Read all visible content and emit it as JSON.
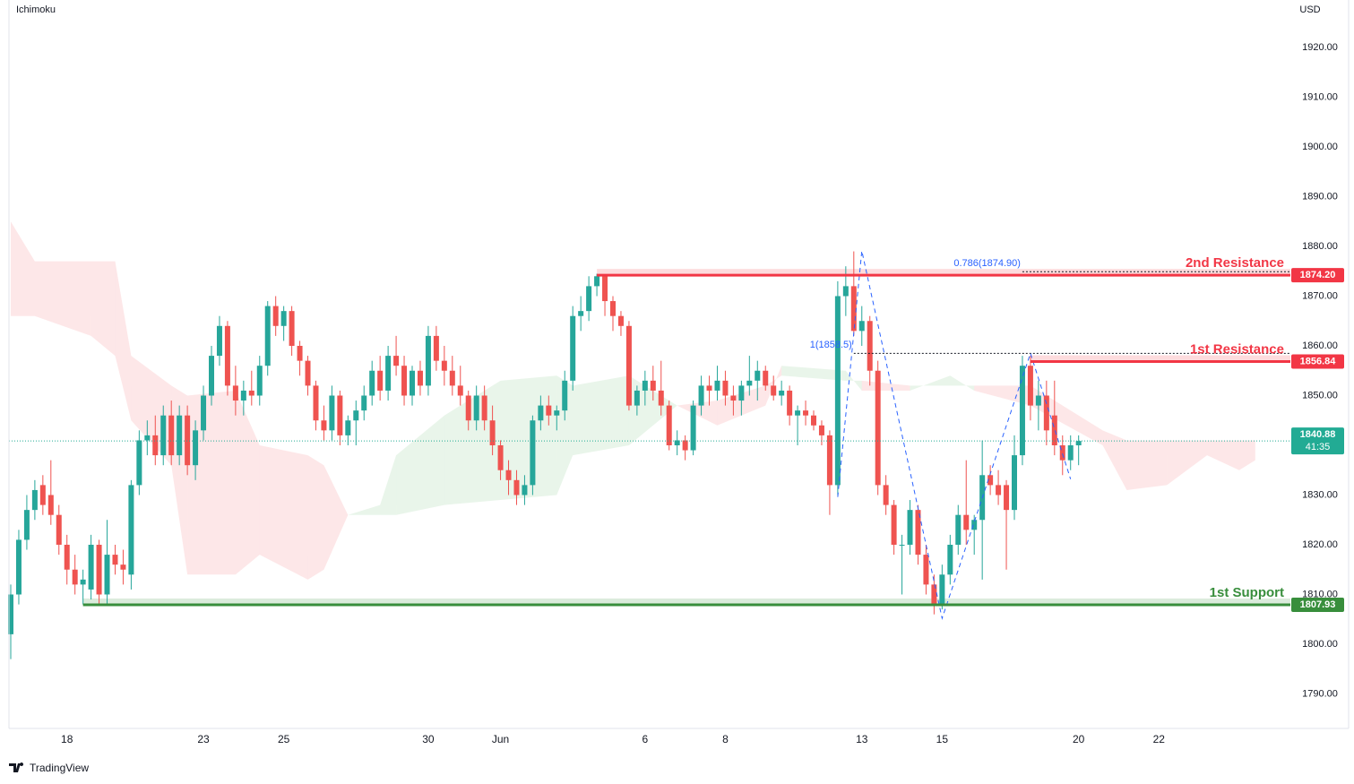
{
  "chart_data": {
    "type": "candlestick",
    "indicator": "Ichimoku",
    "currency": "USD",
    "brand": "TradingView",
    "up_color": "#26a69a",
    "down_color": "#ef5350",
    "ylim": [
      1783.24,
      1929.55
    ],
    "yticks": [
      {
        "value": 1790,
        "label": "1790.00"
      },
      {
        "value": 1800,
        "label": "1800.00"
      },
      {
        "value": 1810,
        "label": "1810.00"
      },
      {
        "value": 1820,
        "label": "1820.00"
      },
      {
        "value": 1830,
        "label": "1830.00"
      },
      {
        "value": 1840,
        "label": "1840.00"
      },
      {
        "value": 1850,
        "label": "1850.00"
      },
      {
        "value": 1860,
        "label": "1860.00"
      },
      {
        "value": 1870,
        "label": "1870.00"
      },
      {
        "value": 1880,
        "label": "1880.00"
      },
      {
        "value": 1890,
        "label": "1890.00"
      },
      {
        "value": 1900,
        "label": "1900.00"
      },
      {
        "value": 1910,
        "label": "1910.00"
      },
      {
        "value": 1920,
        "label": "1920.00"
      }
    ],
    "categories": [
      null,
      null,
      null,
      null,
      null,
      null,
      null,
      "18",
      null,
      null,
      null,
      null,
      null,
      null,
      null,
      null,
      null,
      null,
      null,
      null,
      null,
      null,
      null,
      null,
      "23",
      null,
      null,
      null,
      null,
      null,
      null,
      null,
      null,
      null,
      "25",
      null,
      null,
      null,
      null,
      null,
      null,
      null,
      null,
      null,
      null,
      null,
      null,
      null,
      null,
      null,
      null,
      null,
      "30",
      null,
      null,
      null,
      null,
      null,
      null,
      null,
      null,
      "Jun",
      null,
      null,
      null,
      null,
      null,
      null,
      null,
      null,
      null,
      null,
      null,
      null,
      null,
      null,
      null,
      null,
      null,
      "6",
      null,
      null,
      null,
      null,
      null,
      null,
      null,
      null,
      null,
      "8",
      null,
      null,
      null,
      null,
      null,
      null,
      null,
      null,
      null,
      null,
      null,
      null,
      null,
      null,
      null,
      null,
      "13",
      null,
      null,
      null,
      null,
      null,
      null,
      null,
      null,
      null,
      "15",
      null,
      null,
      null,
      null,
      null,
      null,
      null,
      null,
      null,
      null,
      null,
      null,
      null,
      null,
      null,
      null,
      "20",
      null,
      null,
      null,
      null,
      null,
      null,
      null,
      null,
      null,
      "22",
      null,
      null,
      null,
      null,
      null,
      null,
      null,
      null,
      null,
      null,
      null,
      null
    ],
    "candles": [
      [
        1802,
        1812,
        1797,
        1810
      ],
      [
        1810,
        1823,
        1808,
        1821
      ],
      [
        1821,
        1830,
        1819,
        1827
      ],
      [
        1827,
        1833,
        1825,
        1831
      ],
      [
        1832,
        1834,
        1826,
        1828
      ],
      [
        1830,
        1837,
        1824,
        1826
      ],
      [
        1826,
        1828,
        1818,
        1820
      ],
      [
        1820,
        1822,
        1812,
        1815
      ],
      [
        1815,
        1818,
        1810,
        1812
      ],
      [
        1812,
        1815,
        1808,
        1813
      ],
      [
        1811,
        1822,
        1809,
        1820
      ],
      [
        1820,
        1821,
        1808,
        1810
      ],
      [
        1810,
        1825,
        1808,
        1818
      ],
      [
        1818,
        1820,
        1814,
        1816
      ],
      [
        1816,
        1819,
        1812,
        1815
      ],
      [
        1814,
        1833,
        1811,
        1832
      ],
      [
        1832,
        1843,
        1830,
        1841
      ],
      [
        1841,
        1845,
        1838,
        1842
      ],
      [
        1842,
        1846,
        1836,
        1838
      ],
      [
        1838,
        1848,
        1836,
        1846
      ],
      [
        1846,
        1849,
        1836,
        1838
      ],
      [
        1838,
        1848,
        1836,
        1846
      ],
      [
        1846,
        1848,
        1834,
        1836
      ],
      [
        1836,
        1845,
        1833,
        1843
      ],
      [
        1843,
        1852,
        1841,
        1850
      ],
      [
        1850,
        1860,
        1848,
        1858
      ],
      [
        1858,
        1866,
        1856,
        1864
      ],
      [
        1864,
        1865,
        1850,
        1852
      ],
      [
        1852,
        1856,
        1846,
        1849
      ],
      [
        1849,
        1853,
        1846,
        1851
      ],
      [
        1851,
        1855,
        1848,
        1850
      ],
      [
        1850,
        1858,
        1848,
        1856
      ],
      [
        1856,
        1869,
        1854,
        1868
      ],
      [
        1868,
        1870,
        1862,
        1864
      ],
      [
        1864,
        1868,
        1861,
        1867
      ],
      [
        1867,
        1868,
        1858,
        1860
      ],
      [
        1860,
        1861,
        1854,
        1857
      ],
      [
        1857,
        1858,
        1850,
        1852
      ],
      [
        1852,
        1853,
        1843,
        1845
      ],
      [
        1845,
        1848,
        1841,
        1843
      ],
      [
        1843,
        1852,
        1841,
        1850
      ],
      [
        1850,
        1851,
        1840,
        1842
      ],
      [
        1842,
        1846,
        1840,
        1845
      ],
      [
        1845,
        1849,
        1840,
        1847
      ],
      [
        1847,
        1852,
        1845,
        1850
      ],
      [
        1850,
        1857,
        1848,
        1855
      ],
      [
        1855,
        1858,
        1849,
        1851
      ],
      [
        1851,
        1860,
        1849,
        1858
      ],
      [
        1858,
        1862,
        1854,
        1856
      ],
      [
        1856,
        1858,
        1848,
        1850
      ],
      [
        1850,
        1856,
        1848,
        1855
      ],
      [
        1855,
        1857,
        1850,
        1852
      ],
      [
        1852,
        1864,
        1850,
        1862
      ],
      [
        1862,
        1864,
        1855,
        1857
      ],
      [
        1857,
        1860,
        1852,
        1855
      ],
      [
        1855,
        1858,
        1850,
        1852
      ],
      [
        1852,
        1856,
        1848,
        1850
      ],
      [
        1850,
        1851,
        1843,
        1845
      ],
      [
        1845,
        1852,
        1843,
        1850
      ],
      [
        1850,
        1852,
        1843,
        1845
      ],
      [
        1845,
        1848,
        1838,
        1840
      ],
      [
        1840,
        1841,
        1833,
        1835
      ],
      [
        1835,
        1837,
        1830,
        1833
      ],
      [
        1833,
        1835,
        1828,
        1830
      ],
      [
        1830,
        1834,
        1828,
        1832
      ],
      [
        1832,
        1846,
        1830,
        1845
      ],
      [
        1845,
        1850,
        1843,
        1848
      ],
      [
        1848,
        1850,
        1844,
        1846
      ],
      [
        1846,
        1848,
        1843,
        1847
      ],
      [
        1847,
        1855,
        1845,
        1853
      ],
      [
        1853,
        1868,
        1851,
        1866
      ],
      [
        1866,
        1870,
        1863,
        1867
      ],
      [
        1867,
        1874,
        1865,
        1872
      ],
      [
        1872,
        1874.5,
        1870,
        1874
      ],
      [
        1874,
        1874,
        1866,
        1869
      ],
      [
        1869,
        1870,
        1863,
        1866
      ],
      [
        1866,
        1867,
        1862,
        1864
      ],
      [
        1864,
        1865,
        1847,
        1848
      ],
      [
        1848,
        1852,
        1846,
        1851
      ],
      [
        1851,
        1855,
        1848,
        1853
      ],
      [
        1853,
        1856,
        1849,
        1851
      ],
      [
        1851,
        1857,
        1846,
        1848
      ],
      [
        1848,
        1849,
        1839,
        1840
      ],
      [
        1840,
        1843,
        1838,
        1841
      ],
      [
        1841,
        1842,
        1837,
        1839
      ],
      [
        1839,
        1849,
        1838,
        1848
      ],
      [
        1848,
        1854,
        1846,
        1852
      ],
      [
        1852,
        1854,
        1848,
        1851
      ],
      [
        1851,
        1856,
        1849,
        1853
      ],
      [
        1853,
        1855,
        1848,
        1850
      ],
      [
        1850,
        1852,
        1846,
        1849
      ],
      [
        1849,
        1853,
        1846,
        1852
      ],
      [
        1852,
        1858,
        1850,
        1853
      ],
      [
        1853,
        1857,
        1849,
        1855
      ],
      [
        1855,
        1856,
        1851,
        1852
      ],
      [
        1852,
        1854,
        1849,
        1850
      ],
      [
        1850,
        1853,
        1848,
        1851
      ],
      [
        1851,
        1852,
        1844,
        1846
      ],
      [
        1846,
        1848,
        1840,
        1847
      ],
      [
        1847,
        1849,
        1844,
        1846
      ],
      [
        1846,
        1847,
        1843,
        1844
      ],
      [
        1844,
        1845,
        1840,
        1842
      ],
      [
        1842,
        1843,
        1826,
        1832
      ],
      [
        1832,
        1873,
        1830,
        1870
      ],
      [
        1870,
        1876,
        1866,
        1872
      ],
      [
        1872,
        1879,
        1862,
        1863
      ],
      [
        1863,
        1868,
        1860,
        1865
      ],
      [
        1865,
        1866,
        1852,
        1855
      ],
      [
        1855,
        1857,
        1830,
        1832
      ],
      [
        1832,
        1834,
        1826,
        1828
      ],
      [
        1828,
        1829,
        1818,
        1820
      ],
      [
        1820,
        1822,
        1810,
        1820
      ],
      [
        1820,
        1829,
        1818,
        1827
      ],
      [
        1827,
        1828,
        1816,
        1818
      ],
      [
        1818,
        1820,
        1810,
        1812
      ],
      [
        1812,
        1814,
        1806,
        1808
      ],
      [
        1808,
        1816,
        1807,
        1814
      ],
      [
        1814,
        1822,
        1812,
        1820
      ],
      [
        1820,
        1828,
        1818,
        1826
      ],
      [
        1826,
        1837,
        1820,
        1823
      ],
      [
        1823,
        1826,
        1818,
        1825
      ],
      [
        1825,
        1841,
        1813,
        1834
      ],
      [
        1834,
        1836,
        1830,
        1832
      ],
      [
        1832,
        1835,
        1828,
        1830
      ],
      [
        1832,
        1833,
        1815,
        1827
      ],
      [
        1827,
        1842,
        1825,
        1838
      ],
      [
        1838,
        1858,
        1836,
        1856
      ],
      [
        1856,
        1858,
        1845,
        1848
      ],
      [
        1848,
        1853,
        1843,
        1850
      ],
      [
        1850,
        1853,
        1840,
        1843
      ],
      [
        1846,
        1853,
        1838,
        1840
      ],
      [
        1840,
        1842,
        1834,
        1837
      ],
      [
        1837,
        1842,
        1835,
        1840
      ],
      [
        1840,
        1842,
        1836,
        1840.88
      ],
      null,
      null,
      null,
      null,
      null,
      null,
      null,
      null,
      null,
      null,
      null,
      null,
      null,
      null,
      null,
      null,
      null,
      null,
      null,
      null,
      null,
      null
    ],
    "cloud": {
      "bull_color": "#4caf50",
      "bear_color": "#f23645",
      "index": [
        0,
        3,
        10,
        13,
        15,
        20,
        22,
        28,
        31,
        37,
        39,
        42,
        46,
        48,
        54,
        61,
        68,
        70,
        77,
        83,
        88,
        94,
        96,
        104,
        106,
        112,
        117,
        120,
        127,
        136,
        139,
        144,
        149,
        153,
        155
      ],
      "span_a": [
        1866,
        1866,
        1862,
        1858,
        1845,
        1836,
        1814,
        1814,
        1818,
        1813,
        1815,
        1826,
        1828,
        1838,
        1846,
        1853,
        1854,
        1852,
        1854,
        1848,
        1844,
        1848,
        1856,
        1855,
        1851,
        1851,
        1854,
        1851,
        1848,
        1840,
        1831,
        1832,
        1838,
        1835,
        1837
      ],
      "span_b": [
        1885,
        1877,
        1877,
        1877,
        1858,
        1852,
        1850,
        1851,
        1840,
        1838,
        1836,
        1826,
        1826,
        1826,
        1828,
        1829,
        1830,
        1838,
        1840,
        1848,
        1849,
        1852,
        1854,
        1853,
        1853,
        1852,
        1852,
        1852,
        1852,
        1843,
        1841,
        1841,
        1841,
        1841,
        1841
      ]
    },
    "levels": [
      {
        "name": "2nd Resistance",
        "value": 1874.2,
        "label": "1874.20",
        "start": 73,
        "color": "#f23645"
      },
      {
        "name": "1st Resistance",
        "value": 1856.84,
        "label": "1856.84",
        "start": 127,
        "color": "#f23645"
      },
      {
        "name": "1st Support",
        "value": 1807.93,
        "label": "1807.93",
        "start": 9,
        "color": "#388e3c"
      }
    ],
    "fib": [
      {
        "label": "0.786(1874.90)",
        "value": 1874.9,
        "start": 126
      },
      {
        "label": "1(1858.5)",
        "value": 1858.5,
        "start": 105
      }
    ],
    "zigzag": {
      "color": "#2962ff",
      "index": [
        103,
        106,
        116,
        127,
        132
      ],
      "values": [
        1829.6,
        1879.1,
        1805.2,
        1858.5,
        1833.2
      ]
    },
    "last_price": {
      "value": 1840.88,
      "countdown": "41:35",
      "color": "#22ab94"
    }
  }
}
